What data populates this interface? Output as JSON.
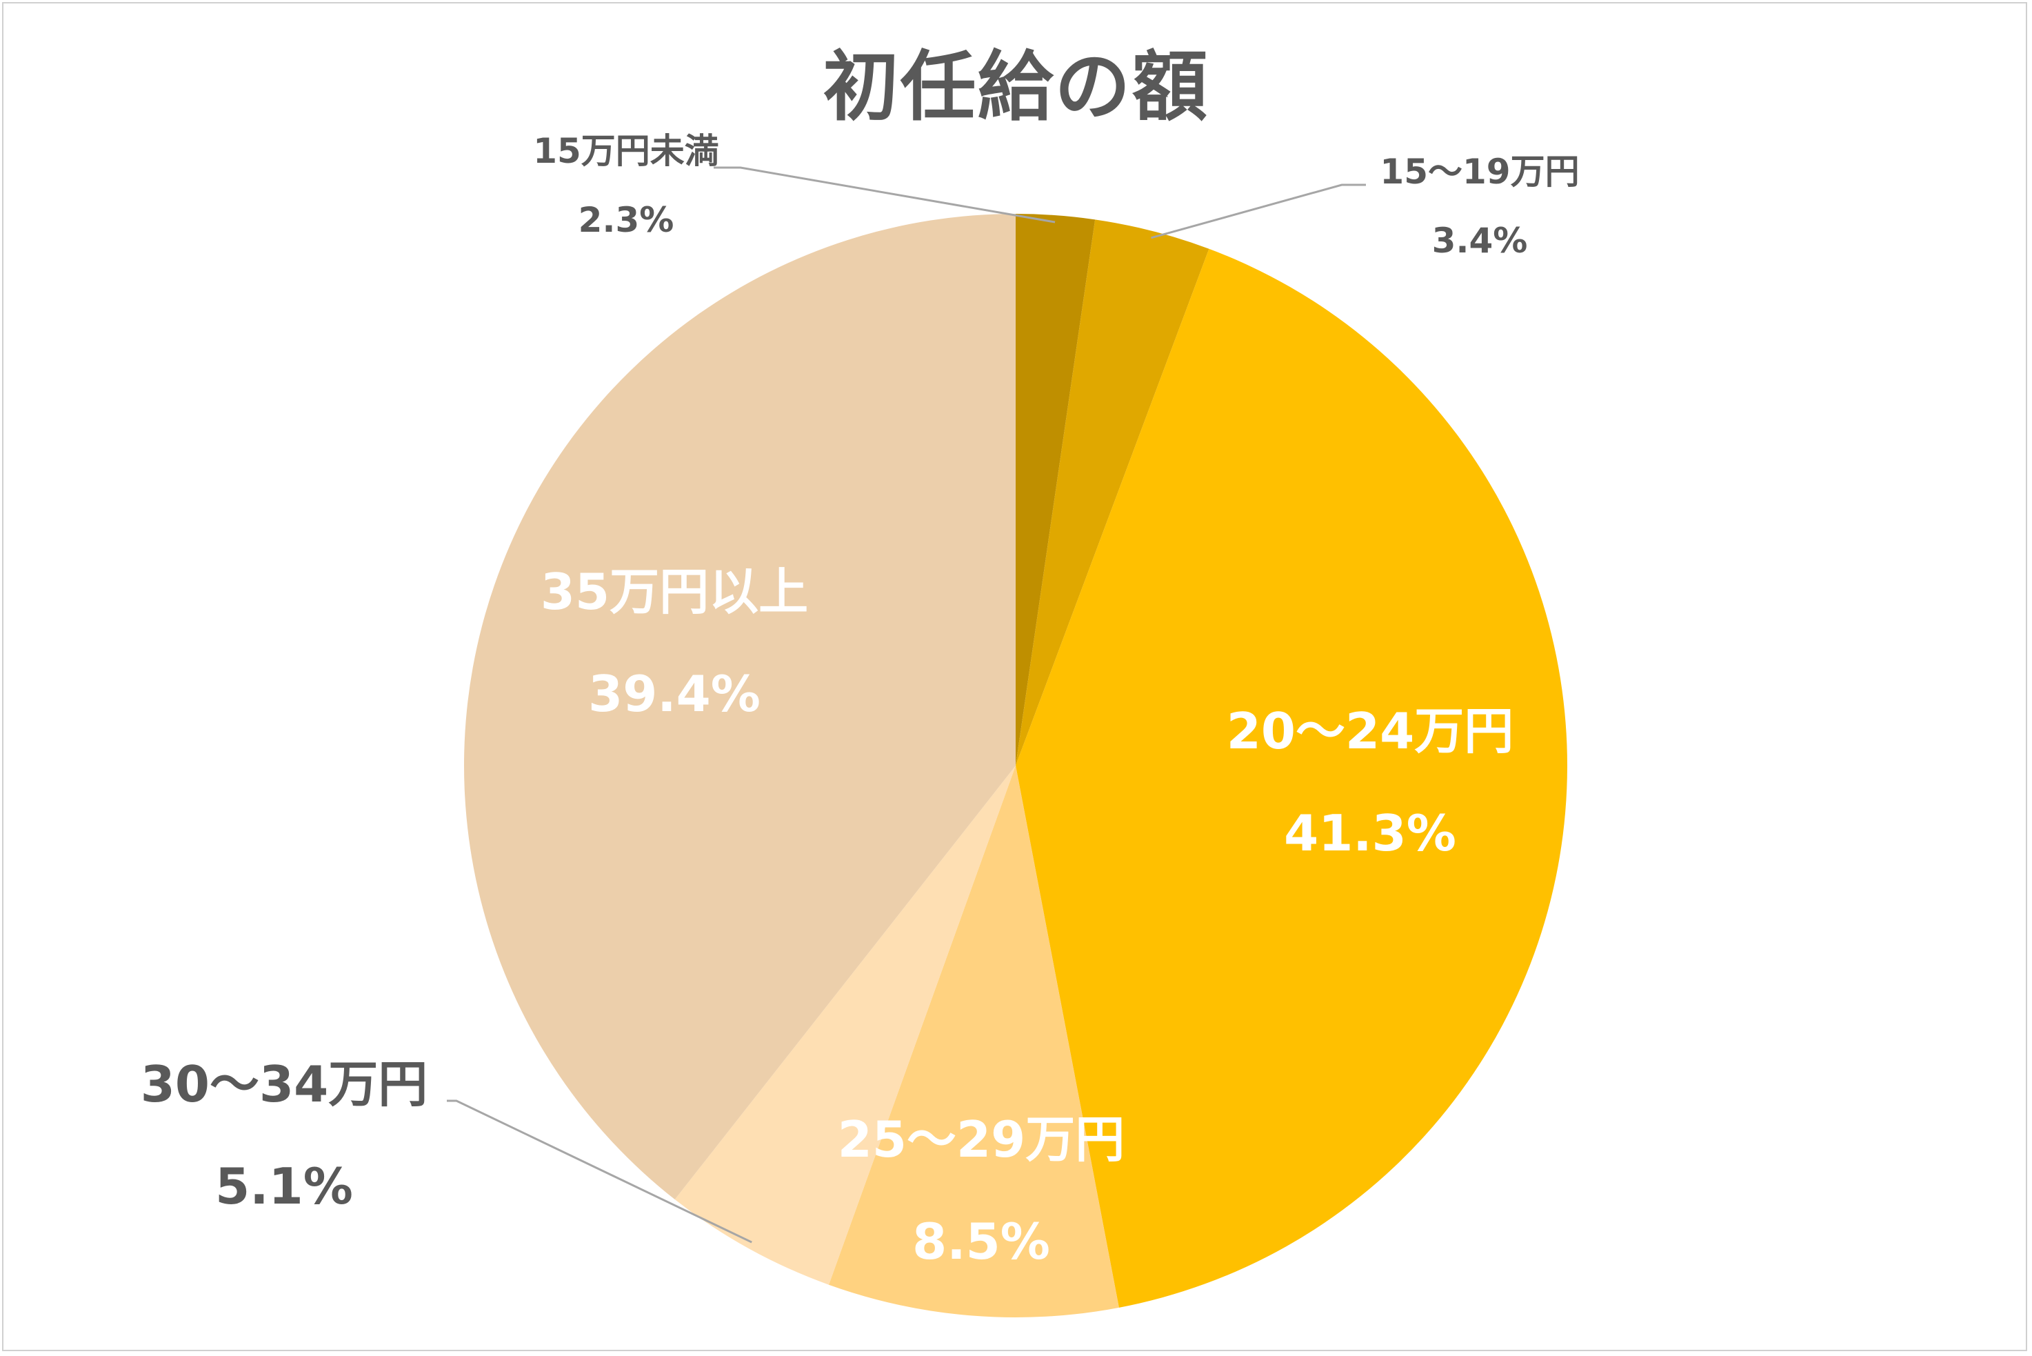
{
  "chart_data": {
    "type": "pie",
    "title": "初任給の額",
    "slices": [
      {
        "label": "15万円未満",
        "value": 2.3,
        "display": "2.3%",
        "color": "#bf8f00"
      },
      {
        "label": "15〜19万円",
        "value": 3.4,
        "display": "3.4%",
        "color": "#e0a800"
      },
      {
        "label": "20〜24万円",
        "value": 41.3,
        "display": "41.3%",
        "color": "#ffc000"
      },
      {
        "label": "25〜29万円",
        "value": 8.5,
        "display": "8.5%",
        "color": "#ffd280"
      },
      {
        "label": "30〜34万円",
        "value": 5.1,
        "display": "5.1%",
        "color": "#fedfb3"
      },
      {
        "label": "35万円以上",
        "value": 39.4,
        "display": "39.4%",
        "color": "#eccfab"
      }
    ],
    "start_angle": "12 o'clock",
    "direction": "clockwise",
    "legend": "none",
    "data_labels": "category name and percentage"
  }
}
